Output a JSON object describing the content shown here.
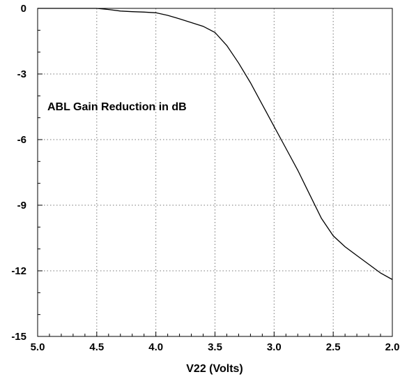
{
  "chart_data": {
    "type": "line",
    "title": "",
    "annotation": "ABL Gain Reduction in dB",
    "xlabel": "V22 (Volts)",
    "ylabel": "",
    "xlim": [
      5.0,
      2.0
    ],
    "ylim": [
      -15,
      0
    ],
    "x_reversed": true,
    "grid": true,
    "x_ticks": [
      5.0,
      4.5,
      4.0,
      3.5,
      3.0,
      2.5,
      2.0
    ],
    "x_tick_labels": [
      "5.0",
      "4.5",
      "4.0",
      "3.5",
      "3.0",
      "2.5",
      "2.0"
    ],
    "y_ticks": [
      0,
      -3,
      -6,
      -9,
      -12,
      -15
    ],
    "y_tick_labels": [
      "0",
      "-3",
      "-6",
      "-9",
      "-12",
      "-15"
    ],
    "series": [
      {
        "x": [
          4.5,
          4.4,
          4.3,
          4.2,
          4.1,
          4.0,
          3.9,
          3.8,
          3.7,
          3.6,
          3.5,
          3.4,
          3.3,
          3.2,
          3.1,
          3.0,
          2.9,
          2.8,
          2.7,
          2.6,
          2.5,
          2.4,
          2.3,
          2.2,
          2.1,
          2.0
        ],
        "y": [
          0.0,
          -0.05,
          -0.12,
          -0.15,
          -0.17,
          -0.2,
          -0.32,
          -0.48,
          -0.65,
          -0.82,
          -1.1,
          -1.7,
          -2.5,
          -3.4,
          -4.4,
          -5.4,
          -6.4,
          -7.4,
          -8.5,
          -9.6,
          -10.4,
          -10.9,
          -11.3,
          -11.7,
          -12.1,
          -12.4
        ]
      }
    ]
  }
}
